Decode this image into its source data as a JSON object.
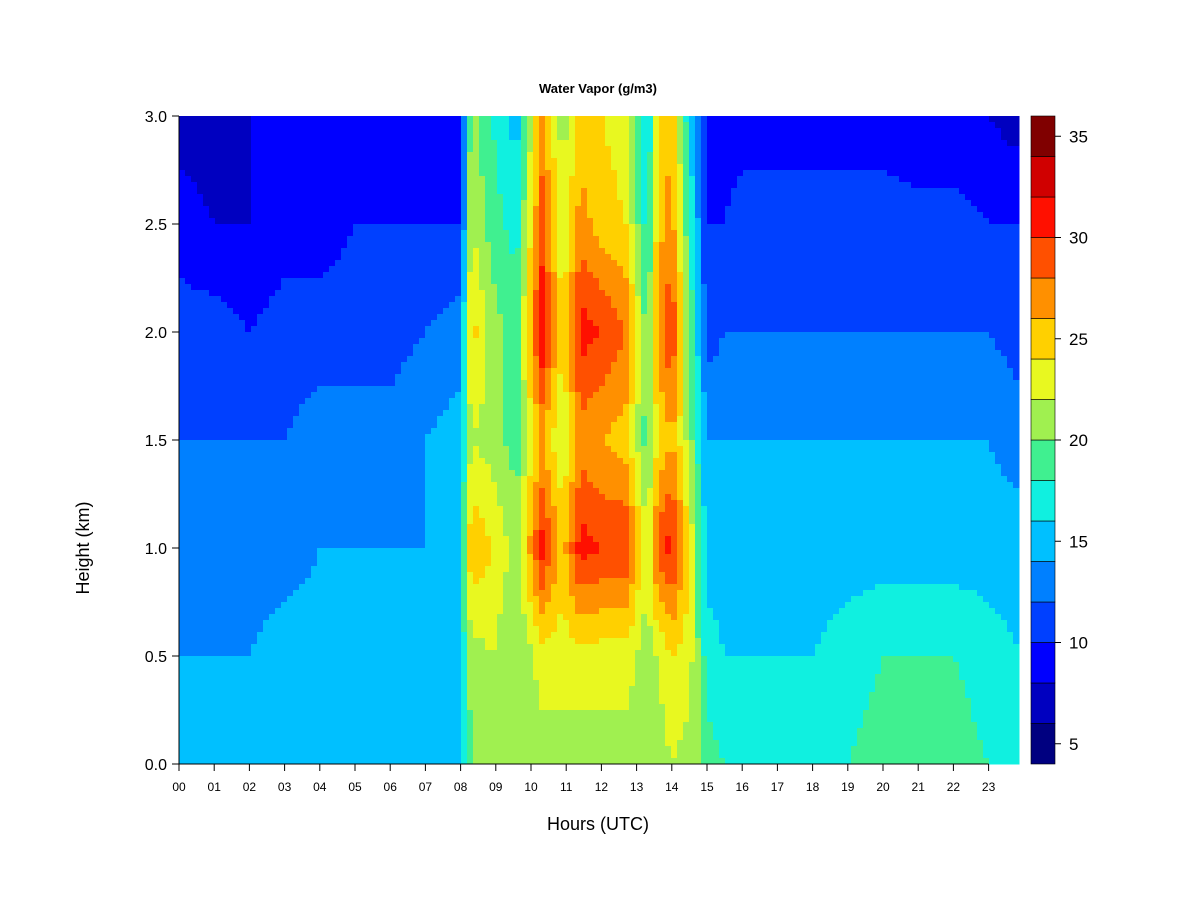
{
  "chart_data": {
    "type": "heatmap",
    "title": "Water Vapor (g/m3)",
    "xlabel": "Hours (UTC)",
    "ylabel": "Height (km)",
    "x_ticks": [
      "00",
      "01",
      "02",
      "03",
      "04",
      "05",
      "06",
      "07",
      "08",
      "09",
      "10",
      "11",
      "12",
      "13",
      "14",
      "15",
      "16",
      "17",
      "18",
      "19",
      "20",
      "21",
      "22",
      "23"
    ],
    "y_ticks": [
      "0.0",
      "0.5",
      "1.0",
      "1.5",
      "2.0",
      "2.5",
      "3.0"
    ],
    "xlim": [
      0,
      23.9
    ],
    "ylim": [
      0,
      3
    ],
    "colorbar": {
      "ticks": [
        "5",
        "10",
        "15",
        "20",
        "25",
        "30",
        "35"
      ],
      "range": [
        4,
        36
      ],
      "levels": [
        {
          "from": 4,
          "to": 6,
          "color": "#000080"
        },
        {
          "from": 6,
          "to": 8,
          "color": "#0000C0"
        },
        {
          "from": 8,
          "to": 10,
          "color": "#0000FF"
        },
        {
          "from": 10,
          "to": 12,
          "color": "#0040FF"
        },
        {
          "from": 12,
          "to": 14,
          "color": "#0080FF"
        },
        {
          "from": 14,
          "to": 16,
          "color": "#00C0FF"
        },
        {
          "from": 16,
          "to": 18,
          "color": "#10F0E0"
        },
        {
          "from": 18,
          "to": 20,
          "color": "#40F090"
        },
        {
          "from": 20,
          "to": 22,
          "color": "#A0F050"
        },
        {
          "from": 22,
          "to": 24,
          "color": "#E8F820"
        },
        {
          "from": 24,
          "to": 26,
          "color": "#FFD000"
        },
        {
          "from": 26,
          "to": 28,
          "color": "#FF9000"
        },
        {
          "from": 28,
          "to": 30,
          "color": "#FF5000"
        },
        {
          "from": 30,
          "to": 32,
          "color": "#FF1000"
        },
        {
          "from": 32,
          "to": 34,
          "color": "#D00000"
        },
        {
          "from": 34,
          "to": 36,
          "color": "#800000"
        }
      ]
    },
    "field": {
      "hours": [
        0,
        1,
        2,
        3,
        4,
        5,
        6,
        7,
        8.0,
        8.3,
        8.9,
        9.6,
        10.3,
        10.9,
        11.4,
        12.0,
        12.7,
        13.3,
        13.6,
        14.0,
        14.5,
        15.0,
        15.5,
        16,
        17,
        18,
        19,
        20,
        21,
        22,
        23,
        23.9
      ],
      "heights": [
        0.0,
        0.5,
        1.0,
        1.5,
        2.0,
        2.5,
        3.0
      ],
      "values": [
        [
          15,
          16,
          16,
          16,
          16,
          16,
          16,
          16,
          16,
          20,
          21,
          20,
          21,
          21,
          21,
          21,
          21,
          20,
          21,
          22,
          21,
          19,
          18,
          17,
          17,
          17,
          18,
          19,
          19,
          19,
          18,
          17
        ],
        [
          14,
          14,
          14,
          15,
          15,
          15,
          15,
          15,
          16,
          21,
          22,
          20,
          23,
          23,
          23,
          23,
          23,
          21,
          22,
          24,
          23,
          17,
          16,
          16,
          16,
          16,
          17,
          18,
          18,
          18,
          17,
          16
        ],
        [
          13,
          13,
          13,
          13,
          14,
          14,
          14,
          14,
          16,
          26,
          24,
          21,
          31,
          25,
          31,
          30,
          30,
          22,
          29,
          31,
          24,
          15,
          15,
          15,
          15,
          15,
          15,
          15,
          15,
          15,
          15,
          15
        ],
        [
          12,
          12,
          12,
          12,
          13,
          13,
          13,
          14,
          15,
          22,
          21,
          19,
          26,
          22,
          27,
          26,
          25,
          19,
          24,
          26,
          21,
          14,
          14,
          14,
          14,
          14,
          14,
          14,
          14,
          14,
          14,
          13
        ],
        [
          11,
          11,
          10,
          11,
          11,
          11,
          11,
          12,
          13,
          25,
          21,
          19,
          32,
          24,
          31,
          30,
          28,
          19,
          27,
          30,
          20,
          11,
          12,
          12,
          12,
          12,
          12,
          12,
          12,
          12,
          12,
          11
        ],
        [
          9,
          8,
          8,
          9,
          9,
          10,
          10,
          10,
          10,
          22,
          19,
          17,
          29,
          22,
          27,
          25,
          24,
          17,
          25,
          27,
          18,
          10,
          10,
          11,
          11,
          11,
          11,
          11,
          11,
          11,
          10,
          10
        ],
        [
          7,
          7,
          8,
          8,
          8,
          9,
          9,
          9,
          9,
          21,
          18,
          15,
          27,
          21,
          25,
          24,
          23,
          15,
          24,
          26,
          16,
          9,
          9,
          9,
          9,
          9,
          9,
          9,
          8,
          8,
          8,
          7
        ]
      ]
    }
  }
}
